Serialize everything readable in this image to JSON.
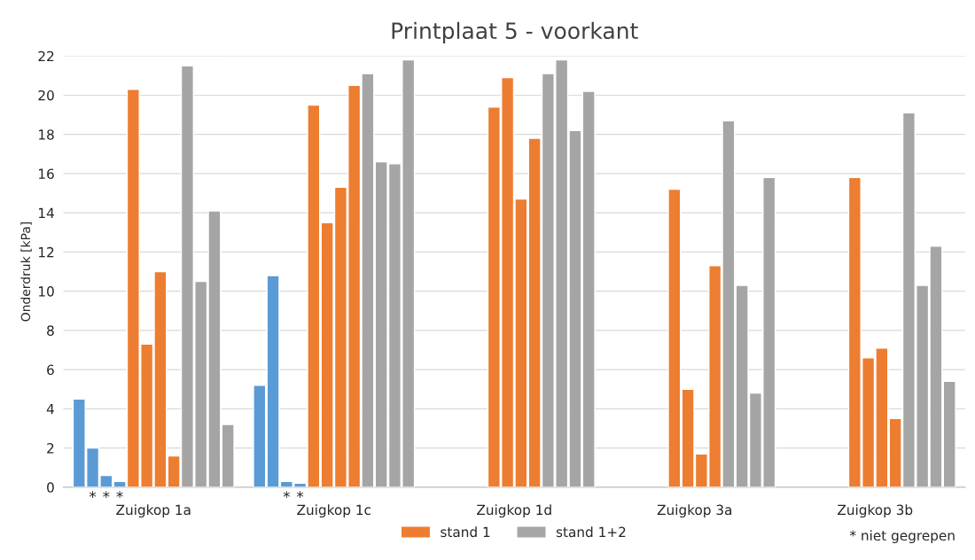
{
  "chart_data": {
    "type": "bar",
    "title": "Printplaat 5 - voorkant",
    "ylabel": "Onderdruk [kPa]",
    "categories": [
      "Zuigkop 1a",
      "Zuigkop 1c",
      "Zuigkop 1d",
      "Zuigkop 3a",
      "Zuigkop 3b"
    ],
    "series": [
      {
        "color": "#5b9bd5",
        "values": [
          4.5,
          5.2,
          null,
          null,
          null
        ]
      },
      {
        "color": "#5b9bd5",
        "values": [
          2.0,
          10.8,
          null,
          null,
          null
        ],
        "value_labels": [
          "*",
          null,
          null,
          null,
          null
        ]
      },
      {
        "color": "#5b9bd5",
        "values": [
          0.6,
          0.3,
          null,
          null,
          null
        ],
        "value_labels": [
          "*",
          "*",
          null,
          null,
          null
        ]
      },
      {
        "color": "#5b9bd5",
        "values": [
          0.3,
          0.2,
          null,
          null,
          null
        ],
        "value_labels": [
          "*",
          "*",
          null,
          null,
          null
        ]
      },
      {
        "name": "stand 1",
        "color": "#ed7d31",
        "values": [
          20.3,
          19.5,
          19.4,
          15.2,
          15.8
        ]
      },
      {
        "color": "#ed7d31",
        "values": [
          7.3,
          13.5,
          20.9,
          5.0,
          6.6
        ]
      },
      {
        "color": "#ed7d31",
        "values": [
          11.0,
          15.3,
          14.7,
          1.7,
          7.1
        ]
      },
      {
        "color": "#ed7d31",
        "values": [
          1.6,
          20.5,
          17.8,
          11.3,
          3.5
        ]
      },
      {
        "name": "stand 1+2",
        "color": "#a5a5a5",
        "values": [
          21.5,
          21.1,
          21.1,
          18.7,
          19.1
        ]
      },
      {
        "color": "#a5a5a5",
        "values": [
          10.5,
          16.6,
          21.8,
          10.3,
          10.3
        ]
      },
      {
        "color": "#a5a5a5",
        "values": [
          14.1,
          16.5,
          18.2,
          4.8,
          12.3
        ]
      },
      {
        "color": "#a5a5a5",
        "values": [
          3.2,
          21.8,
          20.2,
          15.8,
          5.4
        ]
      }
    ],
    "ylim": [
      0,
      22
    ],
    "yticks": [
      0,
      2,
      4,
      6,
      8,
      10,
      12,
      14,
      16,
      18,
      20,
      22
    ],
    "grid": "y",
    "legend": "bottom",
    "annotations": [
      "* niet gegrepen"
    ]
  }
}
